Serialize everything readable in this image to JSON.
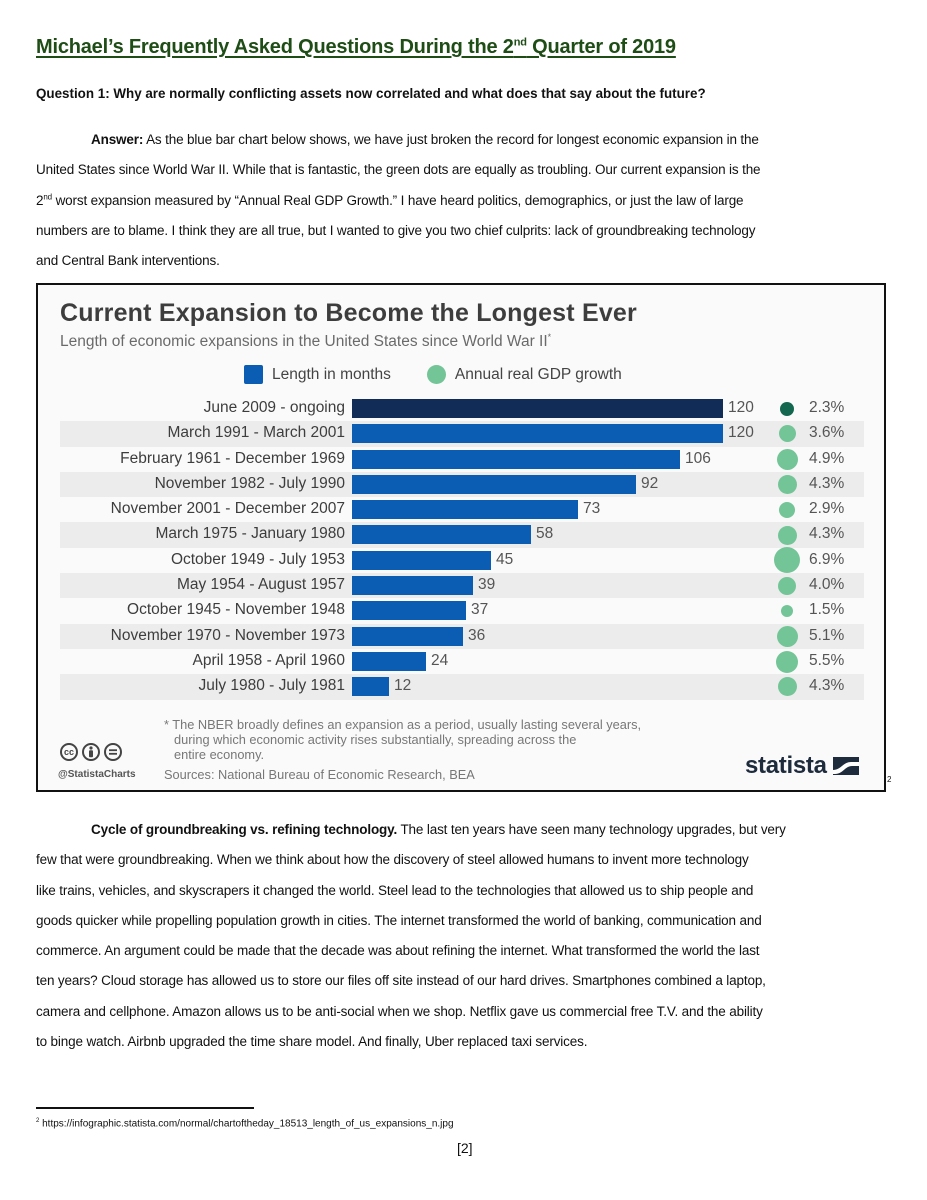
{
  "document": {
    "title": "Michael’s Frequently Asked Questions During the 2",
    "title_sup": "nd",
    "title_end": " Quarter of 2019",
    "question": "Question 1:  Why are normally conflicting assets now correlated and what does that say about the future?",
    "answer": {
      "lead": "Answer:",
      "line1": "  As the blue bar chart below shows, we have just broken the record for longest economic expansion in the",
      "line2": "United States since World War II.  While that is fantastic, the green dots are equally as troubling.  Our current expansion is the",
      "line3_num": "2",
      "line3_sup": "nd",
      "line3": " worst expansion measured by “Annual Real GDP Growth.”  I have heard politics, demographics, or just the law of large",
      "line4": "numbers are to blame.  I think they are all true, but I wanted to give you two chief culprits: lack of groundbreaking technology",
      "line5": "and Central Bank interventions."
    },
    "footnote_marker": "2",
    "section2": {
      "lead": "Cycle of groundbreaking vs. refining technology.",
      "line1": "  The last ten years have seen many technology upgrades, but very",
      "line2": "few that were groundbreaking.  When we think about how the discovery of steel allowed humans to invent more technology",
      "line3": "like trains, vehicles, and skyscrapers it changed the world.  Steel lead to the technologies that allowed us to ship people and",
      "line4": "goods quicker while propelling population growth in cities.  The internet transformed the world of banking, communication and",
      "line5": "commerce.  An argument could be made that the decade was about refining the internet.  What transformed the world the last",
      "line6": "ten years?  Cloud storage has allowed us to store our files off site instead of our hard drives.  Smartphones combined a laptop,",
      "line7": "camera and cellphone.  Amazon allows us to be anti-social when we shop.  Netflix gave us commercial free T.V. and the ability",
      "line8": "to binge watch.  Airbnb upgraded the time share model.  And finally, Uber replaced taxi services."
    },
    "footnote": {
      "num": "2",
      "text": " https://infographic.statista.com/normal/chartoftheday_18513_length_of_us_expansions_n.jpg"
    },
    "page_number": "[2]"
  },
  "chart_data": {
    "type": "bar",
    "title": "Current Expansion to Become the Longest Ever",
    "subtitle": "Length of economic expansions in the United States since World War II",
    "subtitle_mark": "*",
    "legend": [
      "Length in months",
      "Annual real GDP growth"
    ],
    "legend_position": "top",
    "xlabel": "",
    "ylabel": "",
    "xlim": [
      0,
      120
    ],
    "categories": [
      "June 2009 - ongoing",
      "March 1991 - March 2001",
      "February 1961 - December 1969",
      "November 1982 - July 1990",
      "November 2001 - December 2007",
      "March 1975 - January 1980",
      "October 1949 - July 1953",
      "May 1954 - August 1957",
      "October 1945 - November 1948",
      "November 1970 - November 1973",
      "April 1958 - April 1960",
      "July 1980 - July 1981"
    ],
    "series": [
      {
        "name": "Length in months",
        "values": [
          120,
          120,
          106,
          92,
          73,
          58,
          45,
          39,
          37,
          36,
          24,
          12
        ]
      },
      {
        "name": "Annual real GDP growth",
        "unit": "%",
        "values": [
          2.3,
          3.6,
          4.9,
          4.3,
          2.9,
          4.3,
          6.9,
          4.0,
          1.5,
          5.1,
          5.5,
          4.3
        ]
      }
    ],
    "value_labels": [
      "120",
      "120",
      "106",
      "92",
      "73",
      "58",
      "45",
      "39",
      "37",
      "36",
      "24",
      "12"
    ],
    "gdp_labels": [
      "2.3%",
      "3.6%",
      "4.9%",
      "4.3%",
      "2.9%",
      "4.3%",
      "6.9%",
      "4.0%",
      "1.5%",
      "5.1%",
      "5.5%",
      "4.3%"
    ],
    "colors": {
      "bar": "#0b5cb3",
      "bar_current": "#112d57",
      "dot": "#73c597",
      "dot_current": "#13674f"
    },
    "note_line1": "* The NBER broadly defines an expansion as a period, usually lasting several years,",
    "note_line2": "during which economic activity rises substantially, spreading across the",
    "note_line3": "entire economy.",
    "sources": "Sources: National Bureau of Economic Research, BEA",
    "handle": "@StatistaCharts",
    "brand": "statista",
    "license_icons": [
      "cc-icon",
      "attribution-icon",
      "no-derivatives-icon"
    ]
  }
}
